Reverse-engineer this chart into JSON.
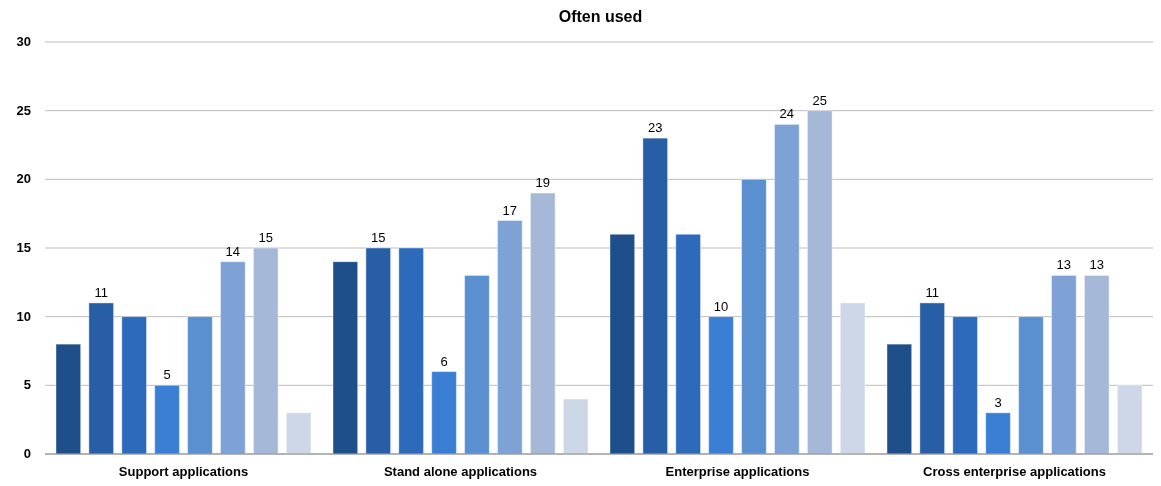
{
  "chart_data": {
    "type": "bar",
    "title": "Often used",
    "categories": [
      "Support applications",
      "Stand alone applications",
      "Enterprise applications",
      "Cross enterprise applications"
    ],
    "series": [
      {
        "color": "#1f4f8a",
        "values": [
          8,
          14,
          16,
          8
        ]
      },
      {
        "color": "#285ea5",
        "values": [
          11,
          15,
          23,
          11
        ],
        "value_labels": [
          "11",
          "15",
          "23",
          "11"
        ]
      },
      {
        "color": "#2d6abb",
        "values": [
          10,
          15,
          16,
          10
        ]
      },
      {
        "color": "#3a7fd3",
        "values": [
          5,
          6,
          10,
          3
        ],
        "value_labels": [
          "5",
          "6",
          "10",
          "3"
        ]
      },
      {
        "color": "#5a8fd0",
        "values": [
          10,
          13,
          20,
          10
        ]
      },
      {
        "color": "#7ea2d5",
        "values": [
          14,
          17,
          24,
          13
        ],
        "value_labels": [
          "14",
          "17",
          "24",
          "13"
        ]
      },
      {
        "color": "#a5b8d8",
        "values": [
          15,
          19,
          25,
          13
        ],
        "value_labels": [
          "15",
          "19",
          "25",
          "13"
        ]
      },
      {
        "color": "#cdd7e8",
        "values": [
          3,
          4,
          11,
          5
        ]
      }
    ],
    "ylim": [
      0,
      30
    ],
    "yticks": [
      0,
      5,
      10,
      15,
      20,
      25,
      30
    ],
    "grid": "y"
  }
}
